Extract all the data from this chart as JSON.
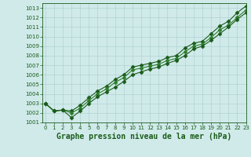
{
  "title": "Graphe pression niveau de la mer (hPa)",
  "xlim": [
    0,
    23
  ],
  "ylim": [
    1001.0,
    1013.5
  ],
  "xticks": [
    0,
    1,
    2,
    3,
    4,
    5,
    6,
    7,
    8,
    9,
    10,
    11,
    12,
    13,
    14,
    15,
    16,
    17,
    18,
    19,
    20,
    21,
    22,
    23
  ],
  "yticks": [
    1001,
    1002,
    1003,
    1004,
    1005,
    1006,
    1007,
    1008,
    1009,
    1010,
    1011,
    1012,
    1013
  ],
  "background_color": "#d0eaea",
  "grid_color": "#aacccc",
  "line_color_dark": "#1a5c1a",
  "line_color_mid": "#2e7d2e",
  "hours": [
    0,
    1,
    2,
    3,
    4,
    5,
    6,
    7,
    8,
    9,
    10,
    11,
    12,
    13,
    14,
    15,
    16,
    17,
    18,
    19,
    20,
    21,
    22,
    23
  ],
  "line1": [
    1003.0,
    1002.2,
    1002.3,
    1002.2,
    1002.8,
    1003.6,
    1004.3,
    1004.8,
    1005.5,
    1006.0,
    1006.8,
    1007.0,
    1007.2,
    1007.4,
    1007.8,
    1008.0,
    1008.8,
    1009.3,
    1009.5,
    1010.3,
    1011.1,
    1011.6,
    1012.5,
    1013.2
  ],
  "line2": [
    1003.0,
    1002.2,
    1002.3,
    1002.0,
    1002.5,
    1003.3,
    1004.0,
    1004.5,
    1005.2,
    1005.7,
    1006.5,
    1006.7,
    1006.9,
    1007.1,
    1007.5,
    1007.7,
    1008.4,
    1009.0,
    1009.2,
    1009.9,
    1010.7,
    1011.2,
    1012.0,
    1012.8
  ],
  "line3": [
    1003.0,
    1002.2,
    1002.3,
    1001.5,
    1002.2,
    1003.0,
    1003.7,
    1004.2,
    1004.7,
    1005.3,
    1006.0,
    1006.3,
    1006.6,
    1006.8,
    1007.2,
    1007.5,
    1008.0,
    1008.7,
    1009.0,
    1009.6,
    1010.3,
    1011.0,
    1011.8,
    1012.5
  ],
  "marker": "D",
  "markersize": 2.5,
  "linewidth": 0.8,
  "title_fontsize": 7.0,
  "tick_fontsize": 5.0,
  "label_fontsize": 6.5
}
